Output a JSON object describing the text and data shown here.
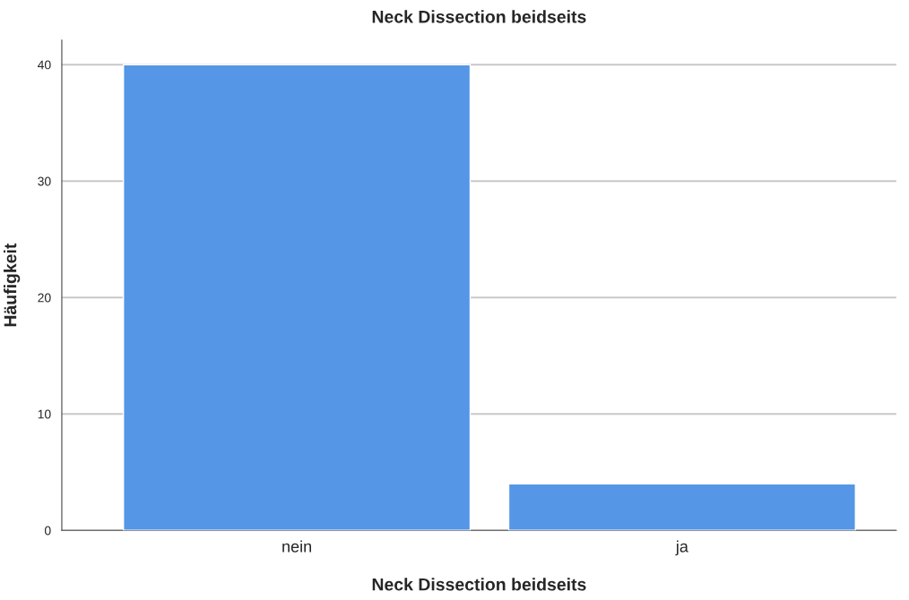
{
  "chart_data": {
    "type": "bar",
    "title": "Neck Dissection beidseits",
    "xlabel": "Neck Dissection beidseits",
    "ylabel": "Häufigkeit",
    "categories": [
      "nein",
      "ja"
    ],
    "values": [
      40,
      4
    ],
    "color": "#5596e6",
    "ylim": [
      0,
      42.1
    ],
    "yticks": [
      0,
      10,
      20,
      30,
      40
    ],
    "grid": "y"
  }
}
